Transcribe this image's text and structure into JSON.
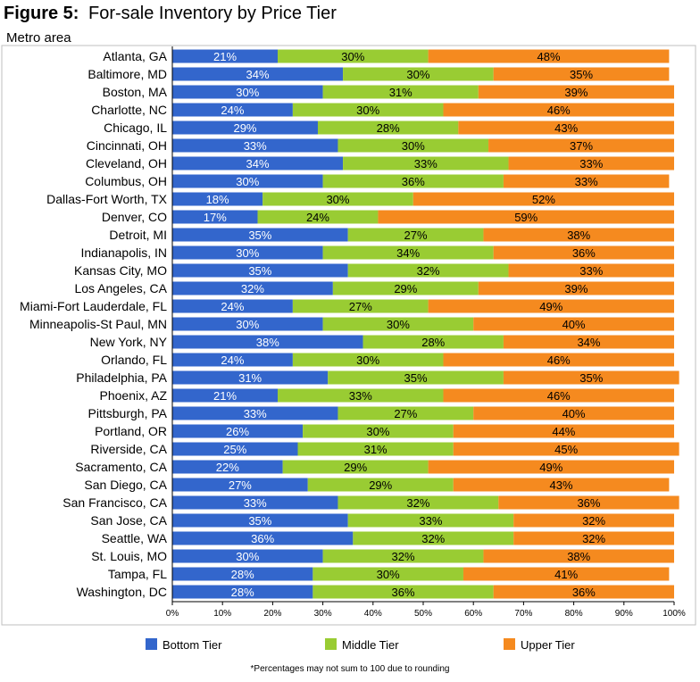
{
  "chart_data": {
    "type": "bar",
    "orientation": "horizontal",
    "stacked": true,
    "title_label": "Figure 5:",
    "title_text": "For-sale Inventory by Price Tier",
    "ylabel": "Metro area",
    "footnote": "*Percentages may not sum to 100 due to rounding",
    "xlim": [
      0,
      100
    ],
    "xticks": [
      "0%",
      "10%",
      "20%",
      "30%",
      "40%",
      "50%",
      "60%",
      "70%",
      "80%",
      "90%",
      "100%"
    ],
    "grid": false,
    "legend_position": "bottom",
    "categories": [
      "Atlanta, GA",
      "Baltimore, MD",
      "Boston, MA",
      "Charlotte, NC",
      "Chicago, IL",
      "Cincinnati, OH",
      "Cleveland, OH",
      "Columbus, OH",
      "Dallas-Fort Worth, TX",
      "Denver, CO",
      "Detroit, MI",
      "Indianapolis, IN",
      "Kansas City, MO",
      "Los Angeles, CA",
      "Miami-Fort Lauderdale, FL",
      "Minneapolis-St Paul, MN",
      "New York, NY",
      "Orlando, FL",
      "Philadelphia, PA",
      "Phoenix, AZ",
      "Pittsburgh, PA",
      "Portland, OR",
      "Riverside, CA",
      "Sacramento, CA",
      "San Diego, CA",
      "San Francisco, CA",
      "San Jose, CA",
      "Seattle, WA",
      "St. Louis, MO",
      "Tampa, FL",
      "Washington, DC"
    ],
    "series": [
      {
        "name": "Bottom Tier",
        "color": "#3366cc",
        "label_color": "#ffffff",
        "values": [
          21,
          34,
          30,
          24,
          29,
          33,
          34,
          30,
          18,
          17,
          35,
          30,
          35,
          32,
          24,
          30,
          38,
          24,
          31,
          21,
          33,
          26,
          25,
          22,
          27,
          33,
          35,
          36,
          30,
          28,
          28
        ]
      },
      {
        "name": "Middle Tier",
        "color": "#99cc33",
        "label_color": "#000000",
        "values": [
          30,
          30,
          31,
          30,
          28,
          30,
          33,
          36,
          30,
          24,
          27,
          34,
          32,
          29,
          27,
          30,
          28,
          30,
          35,
          33,
          27,
          30,
          31,
          29,
          29,
          32,
          33,
          32,
          32,
          30,
          36
        ]
      },
      {
        "name": "Upper Tier",
        "color": "#f58a1f",
        "label_color": "#000000",
        "values": [
          48,
          35,
          39,
          46,
          43,
          37,
          33,
          33,
          52,
          59,
          38,
          36,
          33,
          39,
          49,
          40,
          34,
          46,
          35,
          46,
          40,
          44,
          45,
          49,
          43,
          36,
          32,
          32,
          38,
          41,
          36
        ]
      }
    ]
  }
}
